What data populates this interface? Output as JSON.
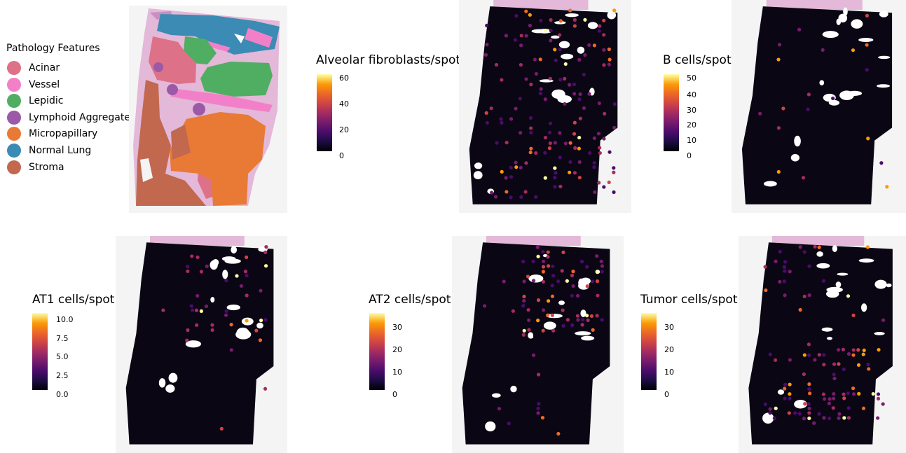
{
  "legend": {
    "title": "Pathology Features",
    "items": [
      {
        "label": "Acinar",
        "color": "#dd7188"
      },
      {
        "label": "Vessel",
        "color": "#f280c8"
      },
      {
        "label": "Lepidic",
        "color": "#4fae62"
      },
      {
        "label": "Lymphoid Aggregate",
        "color": "#9b59a8"
      },
      {
        "label": "Micropapillary",
        "color": "#e87a35"
      },
      {
        "label": "Normal Lung",
        "color": "#3b8bb4"
      },
      {
        "label": "Stroma",
        "color": "#c2684f"
      }
    ]
  },
  "colorbars": {
    "alveolar": {
      "title": "Alveolar fibroblasts/spot",
      "ticks": [
        "60",
        "40",
        "20",
        "0"
      ]
    },
    "bcells": {
      "title": "B cells/spot",
      "ticks": [
        "50",
        "40",
        "30",
        "20",
        "10",
        "0"
      ]
    },
    "at1": {
      "title": "AT1 cells/spot",
      "ticks": [
        "10.0",
        "7.5",
        "5.0",
        "2.5",
        "0.0"
      ]
    },
    "at2": {
      "title": "AT2 cells/spot",
      "ticks": [
        "30",
        "20",
        "10",
        "0"
      ]
    },
    "tumor": {
      "title": "Tumor cells/spot",
      "ticks": [
        "30",
        "20",
        "10",
        "0"
      ]
    }
  },
  "palette": {
    "background_spot": "#0b0614",
    "tissue_pink": "#e3b8d8",
    "highlights": [
      "#4a0c6b",
      "#781c6d",
      "#a52c60",
      "#cf4446",
      "#ed6925",
      "#fb9b06",
      "#fcffa4"
    ]
  }
}
